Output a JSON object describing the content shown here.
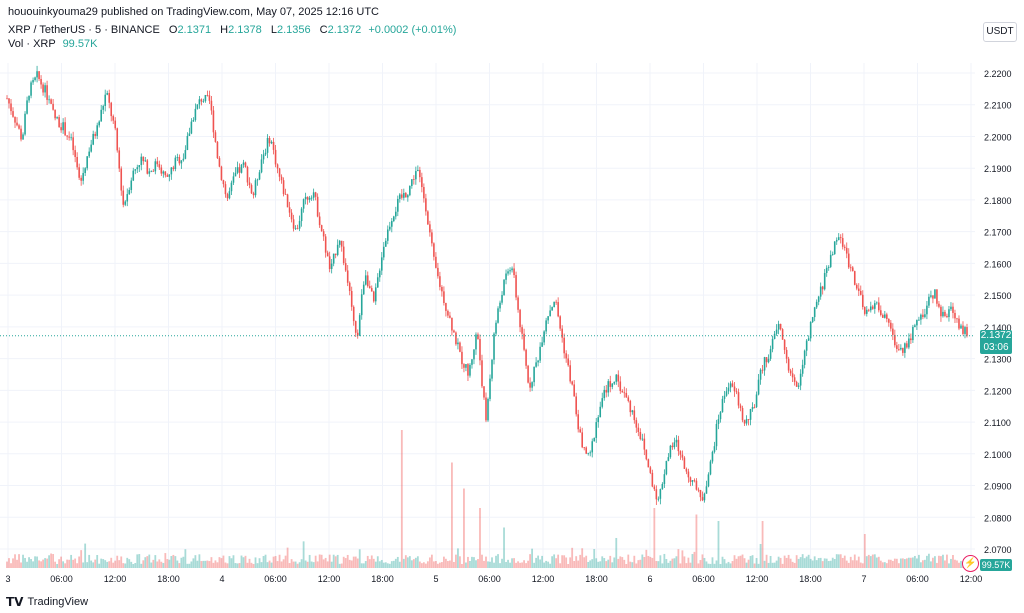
{
  "header": {
    "publish_line": "hououinkyouma29 published on TradingView.com, May 07, 2025 12:16 UTC",
    "symbol": "XRP / TetherUS · 5 · BINANCE",
    "open_label": "O",
    "open": "2.1371",
    "high_label": "H",
    "high": "2.1378",
    "low_label": "L",
    "low": "2.1356",
    "close_label": "C",
    "close": "2.1372",
    "change": "+0.0002 (+0.01%)",
    "vol_label": "Vol · XRP",
    "vol_value": "99.57K"
  },
  "price_axis": {
    "currency": "USDT",
    "current_price": "2.1372",
    "countdown": "03:06",
    "volume_tag": "99.57K"
  },
  "brand": {
    "name": "TradingView"
  },
  "colors": {
    "up": "#26a69a",
    "down": "#ef5350",
    "grid": "#f0f3fa",
    "last_line": "#26a69a"
  },
  "chart_data": {
    "type": "candlestick",
    "symbol": "XRPUSDT",
    "interval": "5",
    "ylim": [
      2.065,
      2.225
    ],
    "y_ticks": [
      2.22,
      2.21,
      2.2,
      2.19,
      2.18,
      2.17,
      2.16,
      2.15,
      2.14,
      2.13,
      2.12,
      2.11,
      2.1,
      2.09,
      2.08,
      2.07
    ],
    "x_ticks": [
      "3",
      "06:00",
      "12:00",
      "18:00",
      "4",
      "06:00",
      "12:00",
      "18:00",
      "5",
      "06:00",
      "12:00",
      "18:00",
      "6",
      "06:00",
      "12:00",
      "18:00",
      "7",
      "06:00",
      "12:00"
    ],
    "last_price": 2.1372,
    "price_path": [
      [
        0,
        2.212
      ],
      [
        4,
        2.205
      ],
      [
        7,
        2.199
      ],
      [
        10,
        2.214
      ],
      [
        14,
        2.219
      ],
      [
        18,
        2.214
      ],
      [
        22,
        2.206
      ],
      [
        26,
        2.203
      ],
      [
        30,
        2.198
      ],
      [
        34,
        2.185
      ],
      [
        38,
        2.196
      ],
      [
        42,
        2.203
      ],
      [
        46,
        2.214
      ],
      [
        50,
        2.202
      ],
      [
        54,
        2.178
      ],
      [
        58,
        2.188
      ],
      [
        62,
        2.193
      ],
      [
        66,
        2.189
      ],
      [
        70,
        2.192
      ],
      [
        74,
        2.186
      ],
      [
        78,
        2.192
      ],
      [
        82,
        2.194
      ],
      [
        86,
        2.206
      ],
      [
        90,
        2.212
      ],
      [
        94,
        2.211
      ],
      [
        98,
        2.192
      ],
      [
        102,
        2.18
      ],
      [
        106,
        2.188
      ],
      [
        110,
        2.191
      ],
      [
        114,
        2.181
      ],
      [
        118,
        2.193
      ],
      [
        122,
        2.2
      ],
      [
        126,
        2.188
      ],
      [
        130,
        2.179
      ],
      [
        134,
        2.17
      ],
      [
        138,
        2.18
      ],
      [
        142,
        2.183
      ],
      [
        146,
        2.17
      ],
      [
        150,
        2.157
      ],
      [
        154,
        2.169
      ],
      [
        158,
        2.154
      ],
      [
        162,
        2.135
      ],
      [
        166,
        2.158
      ],
      [
        170,
        2.147
      ],
      [
        174,
        2.164
      ],
      [
        178,
        2.174
      ],
      [
        182,
        2.18
      ],
      [
        186,
        2.183
      ],
      [
        190,
        2.19
      ],
      [
        194,
        2.179
      ],
      [
        198,
        2.16
      ],
      [
        202,
        2.15
      ],
      [
        206,
        2.141
      ],
      [
        210,
        2.131
      ],
      [
        214,
        2.125
      ],
      [
        218,
        2.139
      ],
      [
        222,
        2.11
      ],
      [
        226,
        2.139
      ],
      [
        230,
        2.153
      ],
      [
        234,
        2.16
      ],
      [
        238,
        2.14
      ],
      [
        242,
        2.121
      ],
      [
        246,
        2.13
      ],
      [
        250,
        2.143
      ],
      [
        254,
        2.149
      ],
      [
        258,
        2.134
      ],
      [
        262,
        2.121
      ],
      [
        266,
        2.104
      ],
      [
        270,
        2.098
      ],
      [
        274,
        2.113
      ],
      [
        278,
        2.121
      ],
      [
        282,
        2.124
      ],
      [
        286,
        2.119
      ],
      [
        290,
        2.113
      ],
      [
        294,
        2.105
      ],
      [
        298,
        2.094
      ],
      [
        302,
        2.085
      ],
      [
        306,
        2.099
      ],
      [
        310,
        2.104
      ],
      [
        314,
        2.096
      ],
      [
        318,
        2.091
      ],
      [
        322,
        2.085
      ],
      [
        326,
        2.096
      ],
      [
        330,
        2.112
      ],
      [
        334,
        2.122
      ],
      [
        338,
        2.119
      ],
      [
        342,
        2.109
      ],
      [
        346,
        2.114
      ],
      [
        350,
        2.127
      ],
      [
        354,
        2.133
      ],
      [
        358,
        2.141
      ],
      [
        362,
        2.128
      ],
      [
        366,
        2.12
      ],
      [
        370,
        2.132
      ],
      [
        374,
        2.144
      ],
      [
        378,
        2.153
      ],
      [
        382,
        2.163
      ],
      [
        386,
        2.169
      ],
      [
        390,
        2.161
      ],
      [
        394,
        2.153
      ],
      [
        398,
        2.143
      ],
      [
        402,
        2.148
      ],
      [
        406,
        2.144
      ],
      [
        410,
        2.138
      ],
      [
        414,
        2.132
      ],
      [
        418,
        2.136
      ],
      [
        422,
        2.141
      ],
      [
        426,
        2.146
      ],
      [
        430,
        2.151
      ],
      [
        434,
        2.143
      ],
      [
        438,
        2.146
      ],
      [
        442,
        2.14
      ],
      [
        446,
        2.137
      ]
    ],
    "volume_spikes": [
      [
        183,
        1.0
      ],
      [
        206,
        0.75
      ],
      [
        212,
        0.55
      ],
      [
        219,
        0.4
      ],
      [
        230,
        0.25
      ],
      [
        300,
        0.4
      ],
      [
        320,
        0.35
      ],
      [
        330,
        0.3
      ],
      [
        350,
        0.3
      ],
      [
        398,
        0.2
      ]
    ]
  }
}
